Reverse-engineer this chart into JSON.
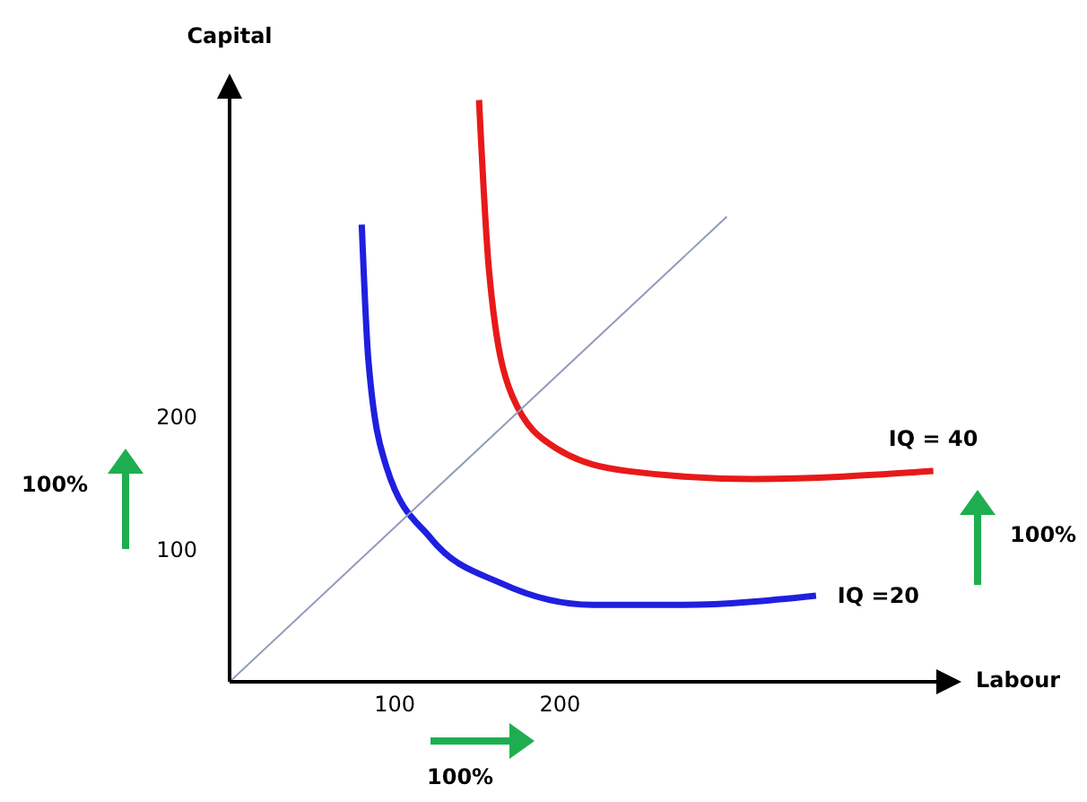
{
  "chart_data": {
    "type": "line",
    "xlabel": "Labour",
    "ylabel": "Capital",
    "xlim": [
      0,
      430
    ],
    "ylim": [
      0,
      440
    ],
    "xticks": [
      100,
      200
    ],
    "yticks": [
      100,
      200
    ],
    "marker": "none",
    "line_style": "solid",
    "series": [
      {
        "name": "IQ =20",
        "color": "#1f1fe0",
        "x": [
          80,
          84,
          95,
          122,
          165,
          220,
          274,
          355
        ],
        "values": [
          345,
          243,
          162,
          108,
          74,
          58,
          58,
          65
        ]
      },
      {
        "name": "IQ = 40",
        "color": "#e81919",
        "x": [
          151,
          157,
          171,
          198,
          241,
          317,
          426
        ],
        "values": [
          439,
          311,
          216,
          176,
          159,
          153,
          159
        ]
      },
      {
        "color": "#8f9bb8",
        "x": [
          0,
          301
        ],
        "values": [
          0,
          351
        ]
      }
    ],
    "annotations": [
      "100%",
      "100%",
      "100%"
    ]
  }
}
